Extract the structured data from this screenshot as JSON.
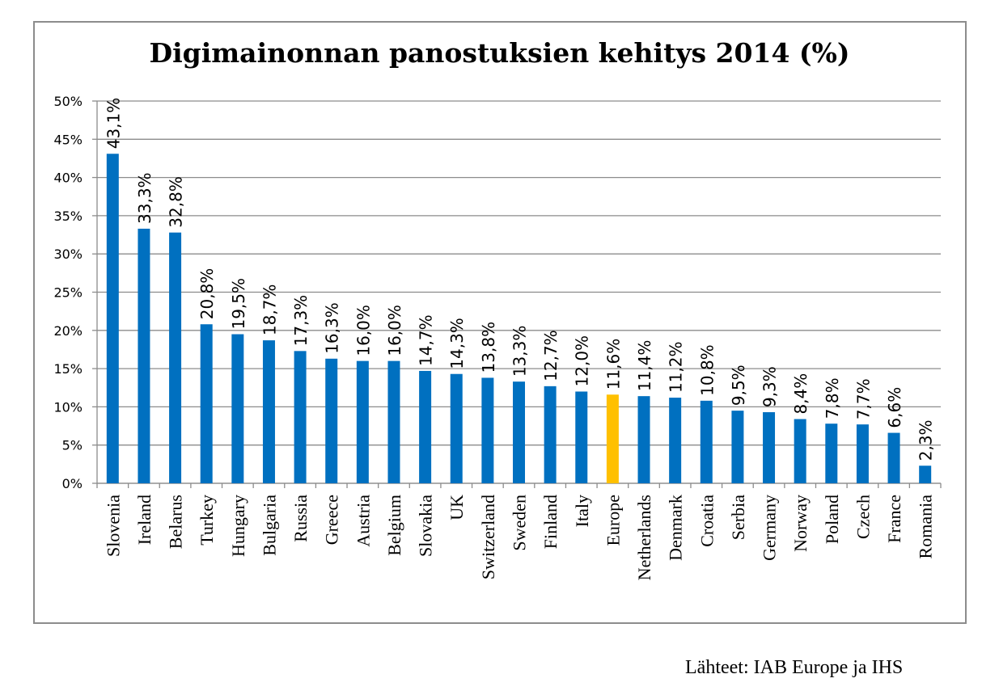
{
  "chart_data": {
    "type": "bar",
    "title": "Digimainonnan panostuksien kehitys 2014 (%)",
    "xlabel": "",
    "ylabel": "",
    "ylim": [
      0,
      50
    ],
    "y_ticks": [
      "0%",
      "5%",
      "10%",
      "15%",
      "20%",
      "25%",
      "30%",
      "35%",
      "40%",
      "45%",
      "50%"
    ],
    "grid": true,
    "legend": "none",
    "categories": [
      "Slovenia",
      "Ireland",
      "Belarus",
      "Turkey",
      "Hungary",
      "Bulgaria",
      "Russia",
      "Greece",
      "Austria",
      "Belgium",
      "Slovakia",
      "UK",
      "Switzerland",
      "Sweden",
      "Finland",
      "Italy",
      "Europe",
      "Netherlands",
      "Denmark",
      "Croatia",
      "Serbia",
      "Germany",
      "Norway",
      "Poland",
      "Czech",
      "France",
      "Romania"
    ],
    "values": [
      43.1,
      33.3,
      32.8,
      20.8,
      19.5,
      18.7,
      17.3,
      16.3,
      16.0,
      16.0,
      14.7,
      14.3,
      13.8,
      13.3,
      12.7,
      12.0,
      11.6,
      11.4,
      11.2,
      10.8,
      9.5,
      9.3,
      8.4,
      7.8,
      7.7,
      6.6,
      2.3
    ],
    "data_labels": [
      "43,1%",
      "33,3%",
      "32,8%",
      "20,8%",
      "19,5%",
      "18,7%",
      "17,3%",
      "16,3%",
      "16,0%",
      "16,0%",
      "14,7%",
      "14,3%",
      "13,8%",
      "13,3%",
      "12,7%",
      "12,0%",
      "11,6%",
      "11,4%",
      "11,2%",
      "10,8%",
      "9,5%",
      "9,3%",
      "8,4%",
      "7,8%",
      "7,7%",
      "6,6%",
      "2,3%"
    ],
    "colors": {
      "bar": "#0070c0",
      "highlight": "#ffc000",
      "grid": "#8c8c8c"
    },
    "highlight_category": "Europe"
  },
  "source_note": "Lähteet: IAB Europe ja IHS"
}
